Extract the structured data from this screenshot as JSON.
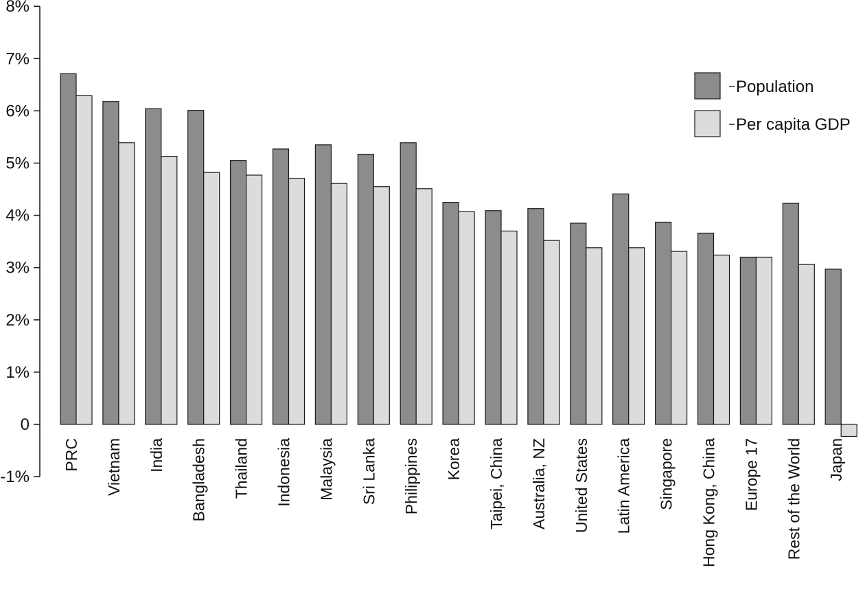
{
  "chart_data": {
    "type": "bar",
    "title": "",
    "xlabel": "",
    "ylabel": "",
    "ylim": [
      -1,
      8
    ],
    "yticks": [
      -1,
      0,
      1,
      2,
      3,
      4,
      5,
      6,
      7,
      8
    ],
    "ytick_labels": [
      "-1%",
      "0",
      "1%",
      "2%",
      "3%",
      "4%",
      "5%",
      "6%",
      "7%",
      "8%"
    ],
    "grid": false,
    "legend_position": "top-right",
    "categories": [
      "PRC",
      "Vietnam",
      "India",
      "Bangladesh",
      "Thailand",
      "Indonesia",
      "Malaysia",
      "Sri Lanka",
      "Philippines",
      "Korea",
      "Taipei, China",
      "Australia, NZ",
      "United States",
      "Latin America",
      "Singapore",
      "Hong Kong, China",
      "Europe 17",
      "Rest of the World",
      "Japan"
    ],
    "series": [
      {
        "name": "Population",
        "color": "#8c8c8c",
        "values": [
          6.71,
          6.18,
          6.04,
          6.01,
          5.05,
          5.27,
          5.35,
          5.17,
          5.39,
          4.25,
          4.09,
          4.13,
          3.85,
          4.41,
          3.87,
          3.66,
          3.2,
          4.23,
          2.97
        ]
      },
      {
        "name": "Per capita GDP",
        "color": "#dcdcdc",
        "values": [
          6.29,
          5.39,
          5.13,
          4.82,
          4.77,
          4.71,
          4.61,
          4.55,
          4.51,
          4.07,
          3.7,
          3.52,
          3.38,
          3.38,
          3.31,
          3.24,
          3.2,
          3.06,
          -0.23
        ]
      }
    ]
  }
}
